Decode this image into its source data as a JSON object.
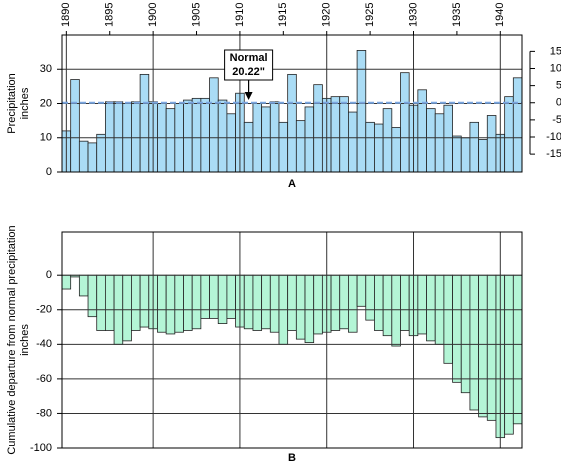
{
  "chart_data": [
    {
      "type": "bar",
      "panel": "A",
      "y_label": [
        "Precipitation",
        "inches"
      ],
      "x": [
        1890,
        1891,
        1892,
        1893,
        1894,
        1895,
        1896,
        1897,
        1898,
        1899,
        1900,
        1901,
        1902,
        1903,
        1904,
        1905,
        1906,
        1907,
        1908,
        1909,
        1910,
        1911,
        1912,
        1913,
        1914,
        1915,
        1916,
        1917,
        1918,
        1919,
        1920,
        1921,
        1922,
        1923,
        1924,
        1925,
        1926,
        1927,
        1928,
        1929,
        1930,
        1931,
        1932,
        1933,
        1934,
        1935,
        1936,
        1937,
        1938,
        1939,
        1940,
        1941,
        1942
      ],
      "values": [
        12,
        27,
        9,
        8.5,
        11,
        20.5,
        20.5,
        20,
        20.5,
        28.5,
        20.5,
        20,
        18.5,
        20,
        21,
        21.5,
        21.5,
        27.5,
        21,
        17,
        23,
        14.5,
        20,
        19,
        20.5,
        14.5,
        28.5,
        15,
        19,
        25.5,
        21.5,
        22,
        22,
        17.5,
        35.5,
        14.5,
        14,
        18.5,
        13,
        29,
        19.5,
        24,
        18.5,
        17,
        19.5,
        10.5,
        10,
        14.5,
        9.5,
        16.5,
        11,
        22,
        27.5
      ],
      "color": "#aadcf5",
      "xlim": [
        1889.5,
        1942.5
      ],
      "xticks": [
        1890,
        1895,
        1900,
        1905,
        1910,
        1915,
        1920,
        1925,
        1930,
        1935,
        1940
      ],
      "ylim": [
        0,
        40
      ],
      "yticks": [
        0,
        10,
        20,
        30
      ],
      "y2lim": [
        -20.22,
        19.78
      ],
      "y2ticks": [
        15,
        10,
        5,
        0,
        -5,
        -10,
        -15
      ],
      "grid": true,
      "normal": 20.22,
      "normal_color": "#7aa6e0",
      "annotation": {
        "lines": [
          "Normal",
          "20.22\""
        ],
        "x": 1911
      }
    },
    {
      "type": "bar",
      "panel": "B",
      "y_label": [
        "Cumulative departure from normal precipitation",
        "inches"
      ],
      "x": [
        1890,
        1891,
        1892,
        1893,
        1894,
        1895,
        1896,
        1897,
        1898,
        1899,
        1900,
        1901,
        1902,
        1903,
        1904,
        1905,
        1906,
        1907,
        1908,
        1909,
        1910,
        1911,
        1912,
        1913,
        1914,
        1915,
        1916,
        1917,
        1918,
        1919,
        1920,
        1921,
        1922,
        1923,
        1924,
        1925,
        1926,
        1927,
        1928,
        1929,
        1930,
        1931,
        1932,
        1933,
        1934,
        1935,
        1936,
        1937,
        1938,
        1939,
        1940,
        1941,
        1942
      ],
      "values": [
        -8,
        -1,
        -12,
        -24,
        -32,
        -32,
        -40,
        -38,
        -32,
        -30,
        -31,
        -33,
        -34,
        -33,
        -32,
        -31,
        -25,
        -25,
        -28,
        -25,
        -30,
        -31,
        -32,
        -31,
        -33,
        -40,
        -32,
        -37,
        -39,
        -34,
        -33,
        -32,
        -31,
        -33,
        -18,
        -26,
        -32,
        -35,
        -41,
        -32,
        -35,
        -34,
        -38,
        -40,
        -51,
        -62,
        -68,
        -78,
        -82,
        -84,
        -94,
        -92,
        -86
      ],
      "color": "#b4f5d6",
      "xlim": [
        1889.5,
        1942.5
      ],
      "xgrid": [
        1900,
        1910,
        1920,
        1930,
        1940
      ],
      "ylim": [
        -100,
        25
      ],
      "yticks": [
        0,
        -20,
        -40,
        -60,
        -80,
        -100
      ],
      "grid": true
    }
  ]
}
